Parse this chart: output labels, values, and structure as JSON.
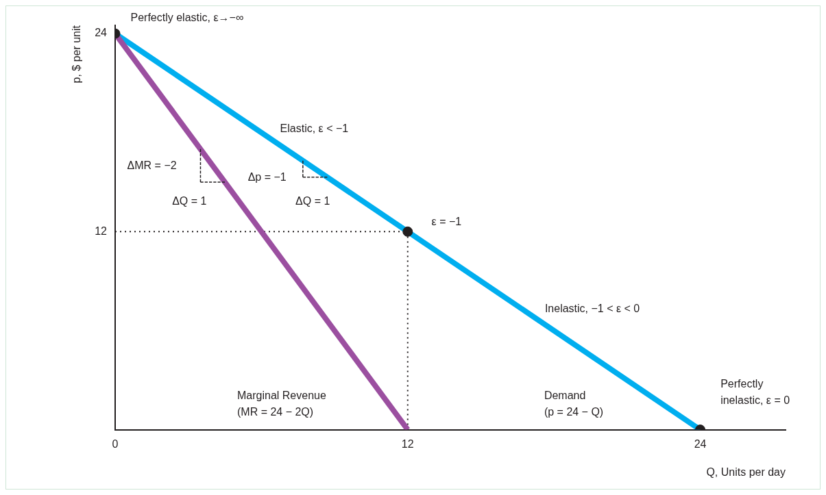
{
  "chart_data": {
    "type": "line",
    "xlabel": "Q, Units per day",
    "ylabel": "p, $ per unit",
    "xlim": [
      0,
      27.5
    ],
    "ylim": [
      0,
      24.5
    ],
    "xticks": [
      0,
      12,
      24
    ],
    "yticks": [
      12,
      24
    ],
    "series": [
      {
        "type": "line",
        "color": "#9b4fa0",
        "line_style": "solid",
        "marker": "none",
        "x": [
          0,
          12
        ],
        "values": [
          24,
          0
        ]
      },
      {
        "type": "line",
        "color": "#00aeef",
        "line_style": "solid",
        "marker": "none",
        "x": [
          0,
          24
        ],
        "values": [
          24,
          0
        ]
      },
      {
        "type": "line",
        "color": "#231f20",
        "line_style": "dotted",
        "marker": "none",
        "x": [
          0,
          12,
          12
        ],
        "values": [
          12,
          12,
          0
        ]
      },
      {
        "type": "line",
        "color": "#231f20",
        "line_style": "dashed",
        "marker": "none",
        "x": [
          3.5,
          3.5,
          4.5
        ],
        "values": [
          17,
          15,
          15
        ]
      },
      {
        "type": "line",
        "color": "#231f20",
        "line_style": "dashed",
        "marker": "none",
        "x": [
          7.7,
          7.7,
          8.7
        ],
        "values": [
          16.3,
          15.3,
          15.3
        ]
      },
      {
        "type": "scatter",
        "color": "#231f20",
        "marker": "circle",
        "x": [
          0,
          12,
          24
        ],
        "values": [
          24,
          12,
          0
        ]
      }
    ],
    "annotations": [
      "Perfectly elastic, ε→−∞",
      "Elastic, ε < −1",
      "ε = −1",
      "Inelastic, −1 < ε < 0",
      "Perfectly\ninelastic, ε = 0",
      "Marginal Revenue\n(MR = 24 − 2Q)",
      "Demand\n(p = 24 − Q)",
      "ΔMR = −2",
      "ΔQ = 1",
      "Δp = −1",
      "ΔQ = 1"
    ]
  }
}
